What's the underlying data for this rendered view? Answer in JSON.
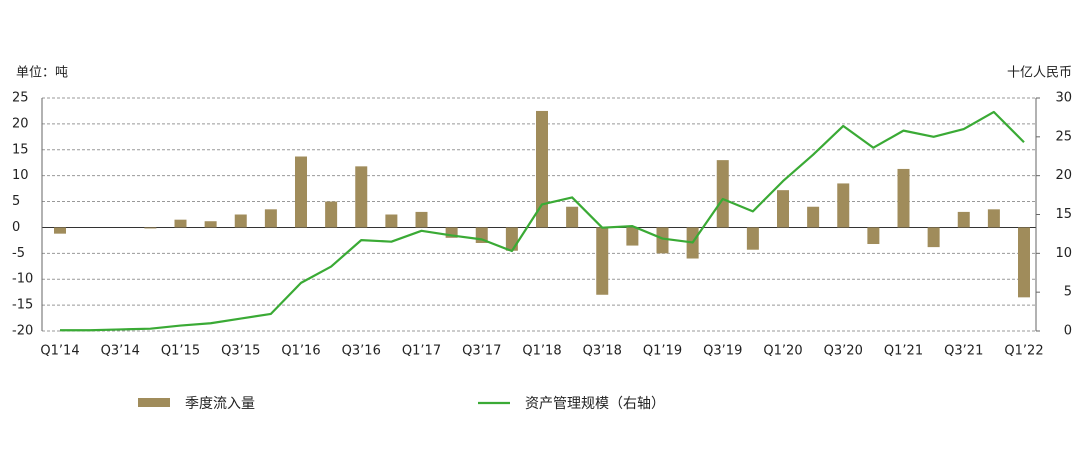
{
  "chart_data": {
    "type": "bar-line",
    "y_label": "单位：吨",
    "y2_label": "十亿人民币",
    "categories": [
      "Q1’14",
      null,
      "Q3’14",
      null,
      "Q1’15",
      null,
      "Q3’15",
      null,
      "Q1’16",
      null,
      "Q3’16",
      null,
      "Q1’17",
      null,
      "Q3’17",
      null,
      "Q1’18",
      null,
      "Q3’18",
      null,
      "Q1’19",
      null,
      "Q3’19",
      null,
      "Q1’20",
      null,
      "Q3’20",
      null,
      "Q1’21",
      null,
      "Q3’21",
      null,
      "Q1’22"
    ],
    "series": [
      {
        "name": "季度流入量",
        "type": "bar",
        "color": "#a08c5b",
        "values": [
          -1.2,
          0,
          0,
          -0.2,
          1.5,
          1.2,
          2.5,
          3.5,
          13.7,
          5,
          11.8,
          2.5,
          3,
          -2,
          -3,
          -4.5,
          22.5,
          4,
          -13,
          -3.5,
          -5,
          -6,
          13,
          -4.3,
          7.2,
          4,
          8.5,
          -3.2,
          11.3,
          -3.8,
          3,
          3.5,
          -13.5
        ]
      },
      {
        "name": "资产管理规模（右轴）",
        "type": "line",
        "axis": "y2",
        "color": "#3aaa35",
        "values": [
          0.1,
          0.1,
          0.2,
          0.3,
          0.7,
          1.0,
          1.6,
          2.2,
          6.2,
          8.3,
          11.7,
          11.5,
          12.9,
          12.3,
          11.8,
          10.3,
          16.3,
          17.2,
          13.3,
          13.5,
          11.9,
          11.4,
          17,
          15.4,
          19.3,
          22.7,
          26.4,
          23.6,
          25.8,
          25,
          26,
          28.2,
          24.3
        ]
      }
    ],
    "ylim": [
      -20,
      25
    ],
    "yticks": [
      -20,
      -15,
      -10,
      -5,
      0,
      5,
      10,
      15,
      20,
      25
    ],
    "y2lim": [
      0,
      30
    ],
    "y2ticks": [
      0,
      5,
      10,
      15,
      20,
      25,
      30
    ],
    "grid": true
  }
}
